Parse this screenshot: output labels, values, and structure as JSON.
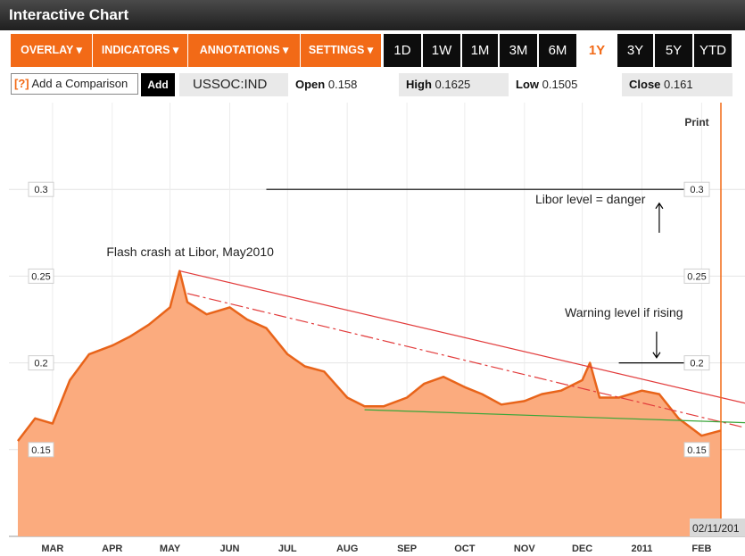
{
  "window": {
    "title": "Interactive Chart"
  },
  "toolbar": {
    "menus": [
      "OVERLAY ▾",
      "INDICATORS ▾",
      "ANNOTATIONS ▾",
      "SETTINGS ▾"
    ],
    "ranges": [
      "1D",
      "1W",
      "1M",
      "3M",
      "6M",
      "1Y",
      "3Y",
      "5Y",
      "YTD"
    ],
    "active_range": "1Y"
  },
  "comparison": {
    "placeholder": "Add a Comparison",
    "help": "[?]",
    "add_label": "Add"
  },
  "quote": {
    "symbol": "USSOC:IND",
    "open_label": "Open",
    "open": "0.158",
    "high_label": "High",
    "high": "0.1625",
    "low_label": "Low",
    "low": "0.1505",
    "close_label": "Close",
    "close": "0.161"
  },
  "print_label": "Print",
  "date_badge": "02/11/201",
  "colors": {
    "accent": "#f26a17",
    "area_fill": "#fbab7e",
    "area_line": "#e8641a",
    "trend_red": "#e23b3b",
    "trend_green": "#3aa63a"
  },
  "chart_data": {
    "type": "area",
    "title": "",
    "xlabel": "",
    "ylabel": "",
    "ylim": [
      0.1,
      0.35
    ],
    "yticks": [
      "0.3",
      "0.25",
      "0.2",
      "0.15"
    ],
    "x_ticks": [
      "MAR",
      "APR",
      "MAY",
      "JUN",
      "JUL",
      "AUG",
      "SEP",
      "OCT",
      "NOV",
      "DEC",
      "2011",
      "FEB"
    ],
    "x": [
      "2010-02-11",
      "2010-02-20",
      "2010-03-01",
      "2010-03-10",
      "2010-03-20",
      "2010-04-01",
      "2010-04-10",
      "2010-04-20",
      "2010-05-01",
      "2010-05-06",
      "2010-05-10",
      "2010-05-20",
      "2010-06-01",
      "2010-06-10",
      "2010-06-20",
      "2010-07-01",
      "2010-07-10",
      "2010-07-20",
      "2010-08-01",
      "2010-08-10",
      "2010-08-20",
      "2010-09-01",
      "2010-09-10",
      "2010-09-20",
      "2010-10-01",
      "2010-10-10",
      "2010-10-20",
      "2010-11-01",
      "2010-11-10",
      "2010-11-20",
      "2010-12-01",
      "2010-12-05",
      "2010-12-10",
      "2010-12-20",
      "2011-01-01",
      "2011-01-10",
      "2011-01-20",
      "2011-02-01",
      "2011-02-11"
    ],
    "series": [
      {
        "values": [
          0.155,
          0.168,
          0.165,
          0.19,
          0.205,
          0.21,
          0.215,
          0.222,
          0.232,
          0.253,
          0.235,
          0.228,
          0.232,
          0.225,
          0.22,
          0.205,
          0.198,
          0.195,
          0.18,
          0.175,
          0.175,
          0.18,
          0.188,
          0.192,
          0.186,
          0.182,
          0.176,
          0.178,
          0.182,
          0.184,
          0.19,
          0.2,
          0.18,
          0.18,
          0.184,
          0.182,
          0.168,
          0.158,
          0.161
        ]
      }
    ],
    "trendlines": [
      {
        "style": "solid",
        "color": "red",
        "from": [
          "2010-05-06",
          0.253
        ],
        "to": [
          "2011-02-11",
          0.18
        ]
      },
      {
        "style": "dash-dot",
        "color": "red",
        "from": [
          "2010-05-10",
          0.24
        ],
        "to": [
          "2011-02-11",
          0.166
        ]
      },
      {
        "style": "solid",
        "color": "green",
        "from": [
          "2010-08-10",
          0.173
        ],
        "to": [
          "2011-02-11",
          0.166
        ]
      },
      {
        "style": "solid",
        "color": "black",
        "from": [
          "2010-06-20",
          0.3
        ],
        "to": [
          "2011-02-05",
          0.3
        ]
      },
      {
        "style": "solid",
        "color": "black",
        "from": [
          "2010-12-20",
          0.2
        ],
        "to": [
          "2011-02-05",
          0.2
        ]
      }
    ],
    "annotations": [
      {
        "text": "Flash crash at Libor, May2010",
        "x": "2010-05-06",
        "y": 0.268
      },
      {
        "text": "Libor level = danger",
        "x": "2010-12-05",
        "y": 0.29
      },
      {
        "text": "Warning level if rising",
        "x": "2010-12-05",
        "y": 0.227
      }
    ]
  }
}
